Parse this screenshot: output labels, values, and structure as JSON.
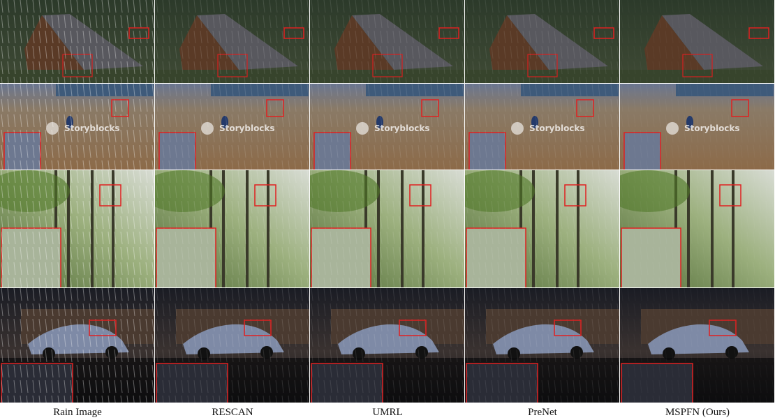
{
  "columns": [
    "Rain Image",
    "RESCAN",
    "UMRL",
    "PreNet",
    "MSPFN (Ours)"
  ],
  "watermark": "Storyblocks"
}
